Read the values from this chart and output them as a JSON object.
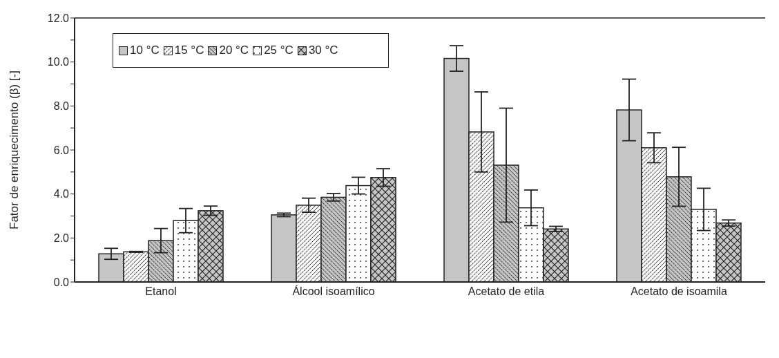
{
  "chart_data": {
    "type": "bar",
    "ylabel": "Fator de enriquecimento (β) [-]",
    "categories": [
      "Etanol",
      "Álcool isoamílico",
      "Acetato de etila",
      "Acetato de isoamila"
    ],
    "series": [
      {
        "name": "10 °C",
        "color": "#c6c6c6",
        "values": [
          1.28,
          3.05,
          10.16,
          7.82
        ],
        "errors": [
          0.25,
          0.08,
          0.58,
          1.4
        ]
      },
      {
        "name": "15 °C",
        "color": "#ffffff",
        "values": [
          1.37,
          3.49,
          6.82,
          6.1
        ],
        "errors": [
          0.02,
          0.32,
          1.82,
          0.68
        ]
      },
      {
        "name": "20 °C",
        "color": "#c6c6c6",
        "values": [
          1.88,
          3.85,
          5.31,
          4.78
        ],
        "errors": [
          0.55,
          0.17,
          2.59,
          1.34
        ]
      },
      {
        "name": "25 °C",
        "color": "#ffffff",
        "values": [
          2.79,
          4.38,
          3.37,
          3.3
        ],
        "errors": [
          0.55,
          0.38,
          0.81,
          0.96
        ]
      },
      {
        "name": "30 °C",
        "color": "#c6c6c6",
        "values": [
          3.24,
          4.75,
          2.41,
          2.68
        ],
        "errors": [
          0.21,
          0.4,
          0.12,
          0.14
        ]
      }
    ],
    "ylim": [
      0,
      12
    ],
    "yticks": [
      {
        "value": 0,
        "label": "0.0"
      },
      {
        "value": 1,
        "label": null
      },
      {
        "value": 2,
        "label": "2.0"
      },
      {
        "value": 3,
        "label": null
      },
      {
        "value": 4,
        "label": "4.0"
      },
      {
        "value": 5,
        "label": null
      },
      {
        "value": 6,
        "label": "6.0"
      },
      {
        "value": 7,
        "label": null
      },
      {
        "value": 8,
        "label": "8.0"
      },
      {
        "value": 9,
        "label": null
      },
      {
        "value": 10,
        "label": "10.0"
      },
      {
        "value": 11,
        "label": null
      },
      {
        "value": 12,
        "label": "12.0"
      }
    ],
    "grid": false,
    "legend": "top left"
  }
}
